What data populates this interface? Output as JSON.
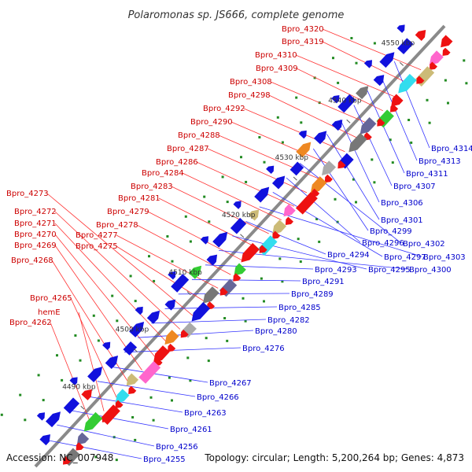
{
  "title": "Polaromonas sp. JS666, complete genome",
  "footer": {
    "accession": "Accession: NC_007948",
    "topology": "Topology: circular; Length: 5,200,264 bp; Genes: 4,873"
  },
  "colors": {
    "forward_label": "#cc0000",
    "reverse_label": "#0000cc",
    "backbone": "#8a8a8a",
    "tick_dot": "#228b22"
  },
  "ticks": [
    "4490 kbp",
    "4500 kbp",
    "4510 kbp",
    "4520 kbp",
    "4530 kbp",
    "4540 kbp",
    "4550 kbp"
  ],
  "forward_labels": [
    "Bpro_4320",
    "Bpro_4319",
    "Bpro_4310",
    "Bpro_4309",
    "Bpro_4308",
    "Bpro_4298",
    "Bpro_4292",
    "Bpro_4290",
    "Bpro_4288",
    "Bpro_4287",
    "Bpro_4286",
    "Bpro_4284",
    "Bpro_4283",
    "Bpro_4281",
    "Bpro_4279",
    "Bpro_4278",
    "Bpro_4277",
    "Bpro_4275",
    "Bpro_4273",
    "Bpro_4272",
    "Bpro_4271",
    "Bpro_4270",
    "Bpro_4269",
    "Bpro_4268",
    "Bpro_4265",
    "hemE",
    "Bpro_4262"
  ],
  "reverse_labels": [
    "Bpro_4314",
    "Bpro_4313",
    "Bpro_4311",
    "Bpro_4307",
    "Bpro_4306",
    "Bpro_4301",
    "Bpro_4299",
    "Bpro_4302",
    "Bpro_4296",
    "Bpro_4297",
    "Bpro_4303",
    "Bpro_4294",
    "Bpro_4295",
    "Bpro_4300",
    "Bpro_4293",
    "Bpro_4291",
    "Bpro_4289",
    "Bpro_4285",
    "Bpro_4282",
    "Bpro_4280",
    "Bpro_4276",
    "Bpro_4267",
    "Bpro_4266",
    "Bpro_4263",
    "Bpro_4261",
    "Bpro_4256",
    "Bpro_4255"
  ]
}
